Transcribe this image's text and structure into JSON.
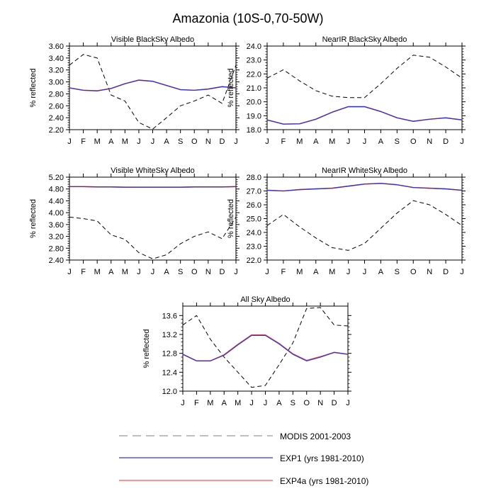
{
  "figure": {
    "title": "Amazonia (10S-0,70-50W)"
  },
  "legend": {
    "items": [
      {
        "label": "MODIS 2001-2003",
        "color": "#999999",
        "dash": true
      },
      {
        "label": "EXP1 (yrs 1981-2010)",
        "color": "#3333cc",
        "dash": false
      },
      {
        "label": "EXP4a (yrs 1981-2010)",
        "color": "#ff5555",
        "dash": false
      }
    ]
  },
  "chart_data": [
    {
      "type": "line",
      "title": "Visible BlackSky Albedo",
      "ylabel": "% reflected",
      "categories": [
        "J",
        "F",
        "M",
        "A",
        "M",
        "J",
        "J",
        "A",
        "S",
        "O",
        "N",
        "D",
        "J"
      ],
      "ylim": [
        2.2,
        3.6
      ],
      "yticks": [
        2.2,
        2.4,
        2.6,
        2.8,
        3.0,
        3.2,
        3.4,
        3.6
      ],
      "ytick_decimals": 2,
      "series": [
        {
          "name": "MODIS 2001-2003",
          "values": [
            3.28,
            3.46,
            3.4,
            2.78,
            2.68,
            2.32,
            2.21,
            2.4,
            2.6,
            2.68,
            2.78,
            2.64,
            3.28
          ]
        },
        {
          "name": "EXP1 (yrs 1981-2010)",
          "values": [
            2.9,
            2.86,
            2.85,
            2.89,
            2.97,
            3.03,
            3.01,
            2.94,
            2.87,
            2.86,
            2.88,
            2.92,
            2.9
          ]
        },
        {
          "name": "EXP4a (yrs 1981-2010)",
          "values": [
            2.9,
            2.86,
            2.85,
            2.89,
            2.97,
            3.03,
            3.01,
            2.94,
            2.87,
            2.86,
            2.88,
            2.92,
            2.9
          ]
        }
      ]
    },
    {
      "type": "line",
      "title": "NearIR BlackSky Albedo",
      "ylabel": "% reflected",
      "categories": [
        "J",
        "F",
        "M",
        "A",
        "M",
        "J",
        "J",
        "A",
        "S",
        "O",
        "N",
        "D",
        "J"
      ],
      "ylim": [
        18.0,
        24.0
      ],
      "yticks": [
        18.0,
        19.0,
        20.0,
        21.0,
        22.0,
        23.0,
        24.0
      ],
      "ytick_decimals": 1,
      "series": [
        {
          "name": "MODIS 2001-2003",
          "values": [
            21.7,
            22.3,
            21.5,
            20.8,
            20.4,
            20.3,
            20.3,
            21.3,
            22.4,
            23.35,
            23.2,
            22.5,
            21.7
          ]
        },
        {
          "name": "EXP1 (yrs 1981-2010)",
          "values": [
            18.7,
            18.4,
            18.42,
            18.75,
            19.25,
            19.65,
            19.65,
            19.3,
            18.85,
            18.6,
            18.75,
            18.85,
            18.7
          ]
        },
        {
          "name": "EXP4a (yrs 1981-2010)",
          "values": [
            18.7,
            18.4,
            18.42,
            18.75,
            19.25,
            19.65,
            19.65,
            19.3,
            18.85,
            18.6,
            18.75,
            18.85,
            18.7
          ]
        }
      ]
    },
    {
      "type": "line",
      "title": "Visible WhiteSky Albedo",
      "ylabel": "% reflected",
      "categories": [
        "J",
        "F",
        "M",
        "A",
        "M",
        "J",
        "J",
        "A",
        "S",
        "O",
        "N",
        "D",
        "J"
      ],
      "ylim": [
        2.4,
        5.2
      ],
      "yticks": [
        2.4,
        2.8,
        3.2,
        3.6,
        4.0,
        4.4,
        4.8,
        5.2
      ],
      "ytick_decimals": 2,
      "series": [
        {
          "name": "MODIS 2001-2003",
          "values": [
            3.85,
            3.8,
            3.72,
            3.25,
            3.1,
            2.65,
            2.44,
            2.58,
            2.95,
            3.2,
            3.35,
            3.12,
            3.85
          ]
        },
        {
          "name": "EXP1 (yrs 1981-2010)",
          "values": [
            4.88,
            4.88,
            4.87,
            4.87,
            4.86,
            4.86,
            4.86,
            4.86,
            4.86,
            4.87,
            4.87,
            4.87,
            4.88
          ]
        },
        {
          "name": "EXP4a (yrs 1981-2010)",
          "values": [
            4.88,
            4.88,
            4.87,
            4.87,
            4.86,
            4.86,
            4.86,
            4.86,
            4.86,
            4.87,
            4.87,
            4.87,
            4.88
          ]
        }
      ]
    },
    {
      "type": "line",
      "title": "NearIR WhiteSky Albedo",
      "ylabel": "% reflected",
      "categories": [
        "J",
        "F",
        "M",
        "A",
        "M",
        "J",
        "J",
        "A",
        "S",
        "O",
        "N",
        "D",
        "J"
      ],
      "ylim": [
        22.0,
        28.0
      ],
      "yticks": [
        22.0,
        23.0,
        24.0,
        25.0,
        26.0,
        27.0,
        28.0
      ],
      "ytick_decimals": 1,
      "series": [
        {
          "name": "MODIS 2001-2003",
          "values": [
            24.5,
            25.3,
            24.4,
            23.6,
            22.9,
            22.7,
            23.2,
            24.3,
            25.4,
            26.3,
            26.0,
            25.3,
            24.5
          ]
        },
        {
          "name": "EXP1 (yrs 1981-2010)",
          "values": [
            27.05,
            27.0,
            27.1,
            27.15,
            27.2,
            27.35,
            27.5,
            27.55,
            27.45,
            27.25,
            27.2,
            27.15,
            27.05
          ]
        },
        {
          "name": "EXP4a (yrs 1981-2010)",
          "values": [
            27.05,
            27.0,
            27.1,
            27.15,
            27.2,
            27.35,
            27.5,
            27.55,
            27.45,
            27.25,
            27.2,
            27.15,
            27.05
          ]
        }
      ]
    },
    {
      "type": "line",
      "title": "All Sky Albedo",
      "ylabel": "% reflected",
      "categories": [
        "J",
        "F",
        "M",
        "A",
        "M",
        "J",
        "J",
        "A",
        "S",
        "O",
        "N",
        "D",
        "J"
      ],
      "ylim": [
        12.0,
        13.8
      ],
      "yticks": [
        12.0,
        12.4,
        12.8,
        13.2,
        13.6
      ],
      "ytick_decimals": 1,
      "series": [
        {
          "name": "MODIS 2001-2003",
          "values": [
            13.4,
            13.6,
            13.1,
            12.72,
            12.4,
            12.08,
            12.12,
            12.56,
            13.02,
            13.75,
            13.77,
            13.4,
            13.38
          ]
        },
        {
          "name": "EXP1 (yrs 1981-2010)",
          "values": [
            12.78,
            12.64,
            12.64,
            12.76,
            12.98,
            13.18,
            13.18,
            13.0,
            12.78,
            12.64,
            12.72,
            12.82,
            12.78
          ]
        },
        {
          "name": "EXP4a (yrs 1981-2010)",
          "values": [
            12.78,
            12.64,
            12.64,
            12.77,
            12.99,
            13.19,
            13.19,
            13.01,
            12.79,
            12.65,
            12.73,
            12.82,
            12.78
          ]
        }
      ]
    }
  ]
}
